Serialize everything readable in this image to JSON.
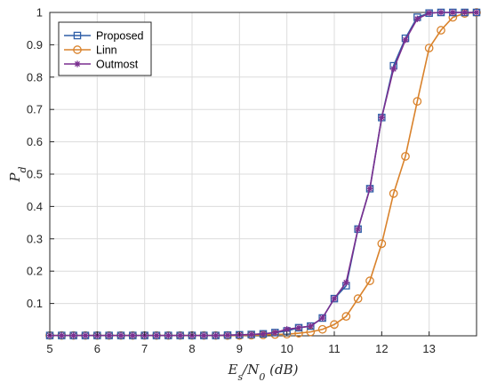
{
  "chart_data": {
    "type": "line",
    "xlabel": "E_s/N_0 (dB)",
    "ylabel": "P_d",
    "xlim": [
      5,
      14
    ],
    "ylim": [
      0,
      1
    ],
    "xticks": [
      5,
      6,
      7,
      8,
      9,
      10,
      11,
      12,
      13
    ],
    "yticks": [
      0.1,
      0.2,
      0.3,
      0.4,
      0.5,
      0.6,
      0.7,
      0.8,
      0.9,
      1
    ],
    "grid": true,
    "legend": "top-left",
    "series": [
      {
        "name": "Proposed",
        "color": "#2f5fa7",
        "marker": "square",
        "x": [
          5,
          5.25,
          5.5,
          5.75,
          6,
          6.25,
          6.5,
          6.75,
          7,
          7.25,
          7.5,
          7.75,
          8,
          8.25,
          8.5,
          8.75,
          9,
          9.25,
          9.5,
          9.75,
          10,
          10.25,
          10.5,
          10.75,
          11,
          11.25,
          11.5,
          11.75,
          12,
          12.25,
          12.5,
          12.75,
          13,
          13.25,
          13.5,
          13.75,
          14
        ],
        "y": [
          0.001,
          0.001,
          0.001,
          0.001,
          0.001,
          0.001,
          0.001,
          0.001,
          0.001,
          0.001,
          0.001,
          0.001,
          0.001,
          0.001,
          0.001,
          0.002,
          0.003,
          0.004,
          0.006,
          0.01,
          0.015,
          0.025,
          0.03,
          0.055,
          0.115,
          0.155,
          0.33,
          0.455,
          0.675,
          0.835,
          0.92,
          0.985,
          0.998,
          1,
          1,
          1,
          1
        ]
      },
      {
        "name": "Linn",
        "color": "#d9822b",
        "marker": "circle",
        "x": [
          5,
          5.25,
          5.5,
          5.75,
          6,
          6.25,
          6.5,
          6.75,
          7,
          7.25,
          7.5,
          7.75,
          8,
          8.25,
          8.5,
          8.75,
          9,
          9.25,
          9.5,
          9.75,
          10,
          10.25,
          10.5,
          10.75,
          11,
          11.25,
          11.5,
          11.75,
          12,
          12.25,
          12.5,
          12.75,
          13,
          13.25,
          13.5,
          13.75,
          14
        ],
        "y": [
          0.001,
          0.001,
          0.001,
          0.001,
          0.001,
          0.001,
          0.001,
          0.001,
          0.001,
          0.001,
          0.001,
          0.001,
          0.001,
          0.001,
          0.001,
          0.001,
          0.001,
          0.002,
          0.003,
          0.004,
          0.005,
          0.008,
          0.012,
          0.02,
          0.035,
          0.06,
          0.115,
          0.17,
          0.285,
          0.44,
          0.555,
          0.725,
          0.89,
          0.945,
          0.985,
          0.997,
          1
        ]
      },
      {
        "name": "Outmost",
        "color": "#7a2f8f",
        "marker": "star",
        "x": [
          5,
          5.25,
          5.5,
          5.75,
          6,
          6.25,
          6.5,
          6.75,
          7,
          7.25,
          7.5,
          7.75,
          8,
          8.25,
          8.5,
          8.75,
          9,
          9.25,
          9.5,
          9.75,
          10,
          10.25,
          10.5,
          10.75,
          11,
          11.25,
          11.5,
          11.75,
          12,
          12.25,
          12.5,
          12.75,
          13,
          13.25,
          13.5,
          13.75,
          14
        ],
        "y": [
          0.001,
          0.001,
          0.001,
          0.001,
          0.001,
          0.001,
          0.001,
          0.001,
          0.001,
          0.001,
          0.001,
          0.001,
          0.001,
          0.001,
          0.001,
          0.002,
          0.003,
          0.004,
          0.006,
          0.01,
          0.02,
          0.025,
          0.03,
          0.055,
          0.115,
          0.165,
          0.33,
          0.455,
          0.675,
          0.825,
          0.915,
          0.98,
          0.998,
          1,
          1,
          1,
          1
        ]
      }
    ]
  }
}
